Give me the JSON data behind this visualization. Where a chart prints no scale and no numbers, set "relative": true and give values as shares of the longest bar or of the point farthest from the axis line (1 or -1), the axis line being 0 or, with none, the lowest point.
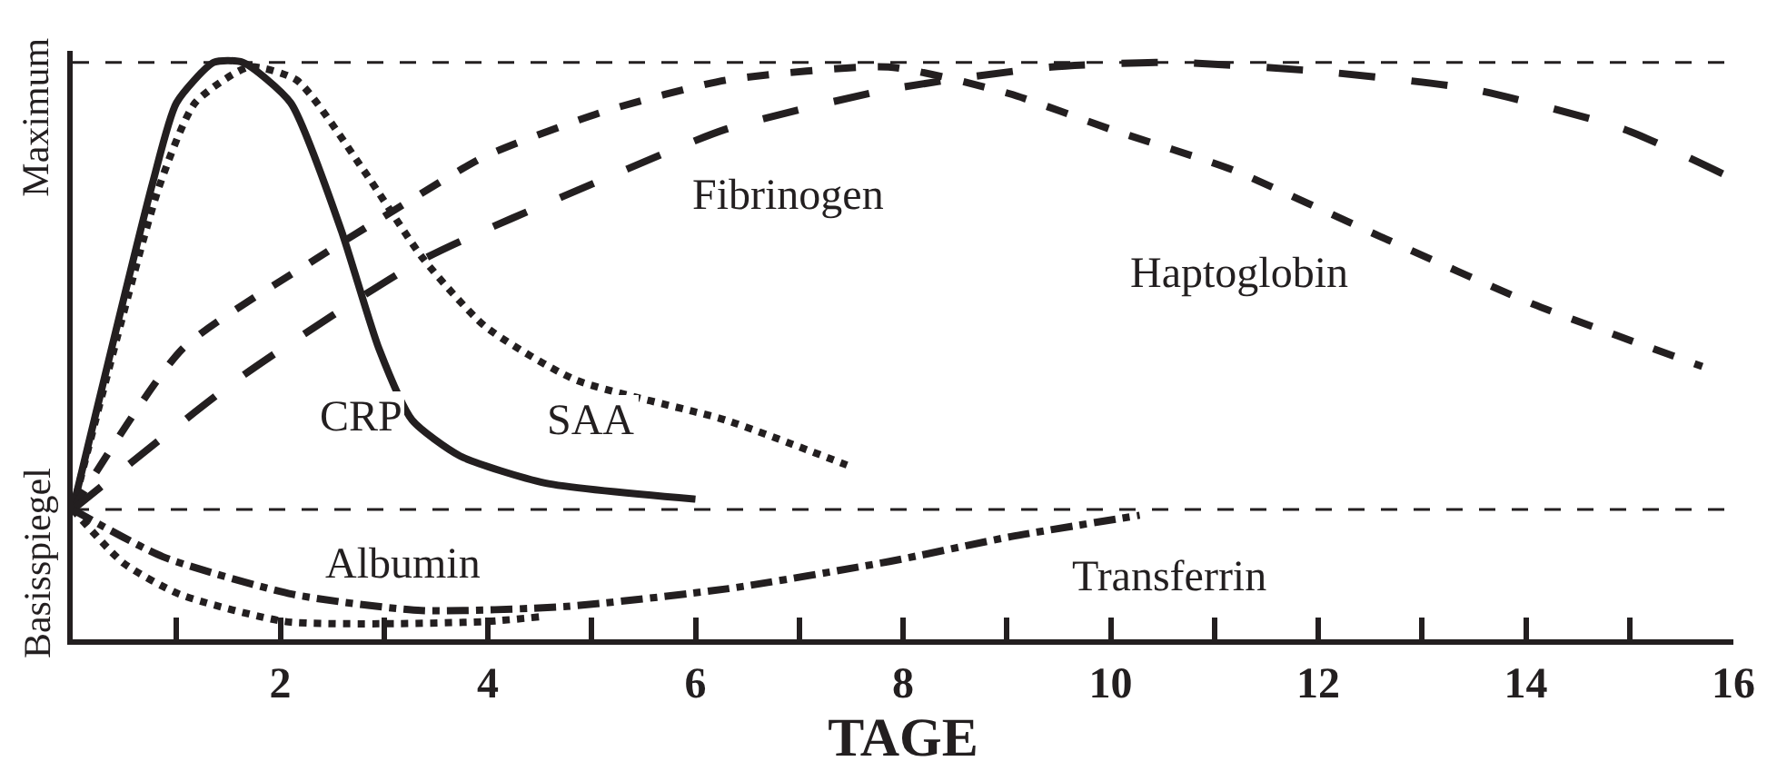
{
  "chart_data": {
    "type": "line",
    "xlabel": "TAGE",
    "relative": true,
    "xlim": [
      0,
      16
    ],
    "xticks": [
      {
        "value": 1,
        "label": null
      },
      2,
      {
        "value": 3,
        "label": null
      },
      4,
      {
        "value": 5,
        "label": null
      },
      6,
      {
        "value": 7,
        "label": null
      },
      8,
      {
        "value": 9,
        "label": null
      },
      10,
      {
        "value": 11,
        "label": null
      },
      12,
      {
        "value": 13,
        "label": null
      },
      14,
      {
        "value": 15,
        "label": null
      },
      16
    ],
    "ref_lines": [
      {
        "axis": "y",
        "value": 0.225,
        "label": "Basisspiegel",
        "color": "#231f20",
        "line_style": "dashed"
      },
      {
        "axis": "y",
        "value": 1,
        "label": "Maximum",
        "color": "#231f20",
        "line_style": "dashed"
      }
    ],
    "series": [
      {
        "color": "#231f20",
        "line_style": "solid",
        "x": [
          0,
          0.77,
          1.0,
          1.36,
          1.64,
          2.1,
          2.58,
          2.95,
          3.27,
          3.73,
          4.55,
          6.0
        ],
        "values": [
          0.225,
          0.791,
          0.93,
          1.0,
          1.0,
          0.93,
          0.713,
          0.504,
          0.38,
          0.318,
          0.271,
          0.243
        ]
      },
      {
        "color": "#231f20",
        "line_style": "dotted",
        "x": [
          0,
          0.83,
          1.18,
          1.7,
          2.16,
          2.8,
          3.38,
          3.97,
          4.84,
          6.29,
          7.46
        ],
        "values": [
          0.225,
          0.783,
          0.93,
          0.992,
          0.969,
          0.814,
          0.659,
          0.543,
          0.45,
          0.38,
          0.302
        ]
      },
      {
        "color": "#231f20",
        "line_style": "dashed",
        "x": [
          0,
          1.06,
          2.34,
          3.1,
          3.97,
          5.12,
          6.29,
          7.86,
          9.02,
          10.0,
          11.17,
          12.6,
          14.07,
          15.7
        ],
        "values": [
          0.225,
          0.504,
          0.659,
          0.744,
          0.837,
          0.915,
          0.969,
          0.992,
          0.946,
          0.884,
          0.814,
          0.698,
          0.581,
          0.473
        ]
      },
      {
        "color": "#231f20",
        "line_style": "longdash",
        "x": [
          0,
          1.64,
          3.38,
          5.12,
          6.29,
          7.86,
          9.43,
          10.6,
          12.04,
          13.5,
          14.95,
          16.0
        ],
        "values": [
          0.225,
          0.457,
          0.659,
          0.798,
          0.884,
          0.953,
          0.992,
          1.0,
          0.984,
          0.953,
          0.884,
          0.798
        ]
      },
      {
        "color": "#231f20",
        "line_style": "dotted",
        "x": [
          0,
          0.49,
          1.03,
          2.04,
          3.05,
          4.0,
          4.5
        ],
        "values": [
          0.225,
          0.132,
          0.078,
          0.031,
          0.027,
          0.031,
          0.039
        ]
      },
      {
        "color": "#231f20",
        "line_style": "dashdot",
        "x": [
          0,
          0.87,
          2.12,
          3.36,
          4.76,
          6.32,
          7.87,
          9.04,
          10.28
        ],
        "values": [
          0.225,
          0.143,
          0.078,
          0.05,
          0.057,
          0.088,
          0.135,
          0.178,
          0.215
        ]
      }
    ],
    "annotations": [
      "CRP",
      "SAA",
      "Fibrinogen",
      "Haptoglobin",
      "Albumin",
      "Transferrin"
    ]
  }
}
